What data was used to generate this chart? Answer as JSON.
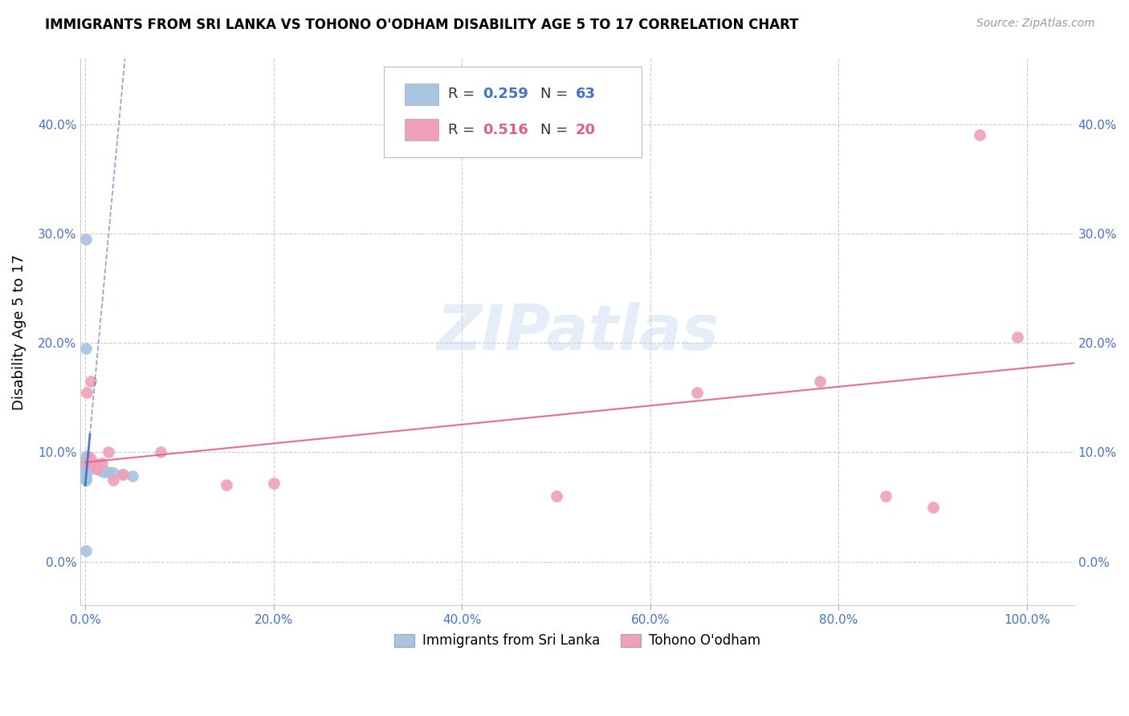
{
  "title": "IMMIGRANTS FROM SRI LANKA VS TOHONO O'ODHAM DISABILITY AGE 5 TO 17 CORRELATION CHART",
  "source": "Source: ZipAtlas.com",
  "ylabel": "Disability Age 5 to 17",
  "xlim": [
    -0.005,
    1.05
  ],
  "ylim": [
    -0.04,
    0.46
  ],
  "yticks": [
    0.0,
    0.1,
    0.2,
    0.3,
    0.4
  ],
  "ytick_labels": [
    "0.0%",
    "10.0%",
    "20.0%",
    "30.0%",
    "40.0%"
  ],
  "xticks": [
    0.0,
    0.2,
    0.4,
    0.6,
    0.8,
    1.0
  ],
  "xtick_labels": [
    "0.0%",
    "20.0%",
    "40.0%",
    "60.0%",
    "80.0%",
    "100.0%"
  ],
  "sri_lanka_color": "#a8c4e0",
  "tohono_color": "#f0a0b8",
  "sri_lanka_line_color": "#4472c4",
  "tohono_line_color": "#e06080",
  "watermark_text": "ZIPatlas",
  "sri_lanka_x": [
    0.0005,
    0.0005,
    0.0005,
    0.0005,
    0.0005,
    0.0005,
    0.0005,
    0.0005,
    0.0005,
    0.0005,
    0.0005,
    0.0005,
    0.0005,
    0.0005,
    0.0005,
    0.0005,
    0.0005,
    0.0005,
    0.0005,
    0.0005,
    0.001,
    0.001,
    0.001,
    0.001,
    0.001,
    0.001,
    0.001,
    0.001,
    0.001,
    0.001,
    0.0015,
    0.0015,
    0.0015,
    0.0015,
    0.0015,
    0.002,
    0.002,
    0.002,
    0.0025,
    0.0025,
    0.003,
    0.003,
    0.0035,
    0.004,
    0.0045,
    0.005,
    0.006,
    0.007,
    0.008,
    0.009,
    0.01,
    0.012,
    0.014,
    0.016,
    0.018,
    0.02,
    0.025,
    0.03,
    0.04,
    0.05,
    0.0005,
    0.0005,
    0.0005
  ],
  "sri_lanka_y": [
    0.075,
    0.075,
    0.078,
    0.08,
    0.08,
    0.082,
    0.082,
    0.083,
    0.083,
    0.085,
    0.085,
    0.085,
    0.086,
    0.087,
    0.088,
    0.088,
    0.089,
    0.089,
    0.09,
    0.09,
    0.09,
    0.09,
    0.091,
    0.091,
    0.092,
    0.092,
    0.093,
    0.093,
    0.094,
    0.095,
    0.09,
    0.092,
    0.093,
    0.095,
    0.097,
    0.091,
    0.093,
    0.095,
    0.092,
    0.095,
    0.091,
    0.093,
    0.092,
    0.09,
    0.091,
    0.089,
    0.088,
    0.088,
    0.087,
    0.086,
    0.086,
    0.085,
    0.084,
    0.084,
    0.083,
    0.082,
    0.082,
    0.081,
    0.08,
    0.078,
    0.295,
    0.195,
    0.01
  ],
  "tohono_x": [
    0.002,
    0.002,
    0.005,
    0.006,
    0.01,
    0.012,
    0.018,
    0.025,
    0.03,
    0.04,
    0.08,
    0.15,
    0.2,
    0.5,
    0.65,
    0.78,
    0.85,
    0.9,
    0.95,
    0.99
  ],
  "tohono_y": [
    0.09,
    0.155,
    0.095,
    0.165,
    0.09,
    0.085,
    0.09,
    0.1,
    0.075,
    0.08,
    0.1,
    0.07,
    0.072,
    0.06,
    0.155,
    0.165,
    0.06,
    0.05,
    0.39,
    0.205
  ]
}
